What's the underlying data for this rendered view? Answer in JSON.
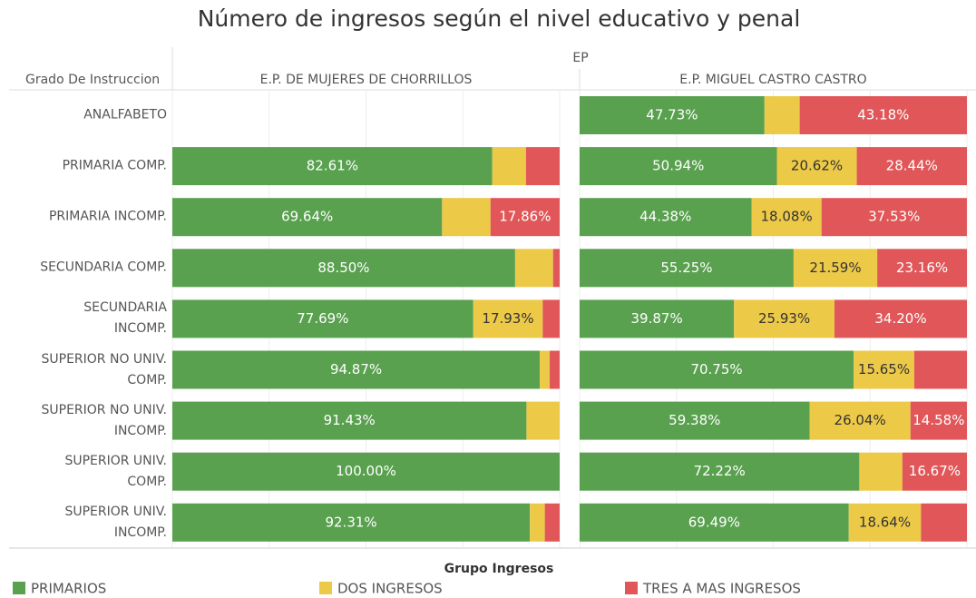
{
  "chart_data": {
    "type": "bar",
    "orientation": "horizontal",
    "stacked": true,
    "title": "Número de ingresos según el nivel educativo y penal",
    "facet_label": "EP",
    "row_header": "Grado De Instruccion",
    "legend_title": "Grupo Ingresos",
    "categories": [
      "ANALFABETO",
      "PRIMARIA COMP.",
      "PRIMARIA INCOMP.",
      "SECUNDARIA COMP.",
      "SECUNDARIA\nINCOMP.",
      "SUPERIOR NO UNIV.\nCOMP.",
      "SUPERIOR NO UNIV.\nINCOMP.",
      "SUPERIOR UNIV.\nCOMP.",
      "SUPERIOR UNIV.\nINCOMP."
    ],
    "xlim": [
      0,
      100
    ],
    "xticks": [
      0,
      25,
      50,
      75,
      100
    ],
    "grid": true,
    "legend_names": [
      "PRIMARIOS",
      "DOS INGRESOS",
      "TRES A MAS INGRESOS"
    ],
    "colors": [
      "#59a14f",
      "#edc948",
      "#e15759"
    ],
    "facets": [
      {
        "name": "E.P. DE MUJERES DE CHORRILLOS",
        "series": [
          {
            "values": [
              null,
              82.61,
              69.64,
              88.5,
              77.69,
              94.87,
              91.43,
              100.0,
              92.31
            ],
            "value_labels": [
              null,
              "82.61%",
              "69.64%",
              "88.50%",
              "77.69%",
              "94.87%",
              "91.43%",
              "100.00%",
              "92.31%"
            ]
          },
          {
            "values": [
              null,
              8.7,
              12.5,
              9.8,
              17.93,
              2.56,
              8.57,
              0,
              3.85
            ],
            "value_labels": [
              null,
              null,
              null,
              null,
              "17.93%",
              null,
              null,
              null,
              null
            ]
          },
          {
            "values": [
              null,
              8.69,
              17.86,
              1.7,
              4.38,
              2.57,
              0,
              0,
              3.84
            ],
            "value_labels": [
              null,
              null,
              "17.86%",
              null,
              null,
              null,
              null,
              null,
              null
            ]
          }
        ]
      },
      {
        "name": "E.P. MIGUEL CASTRO CASTRO",
        "series": [
          {
            "values": [
              47.73,
              50.94,
              44.38,
              55.25,
              39.87,
              70.75,
              59.38,
              72.22,
              69.49
            ],
            "value_labels": [
              "47.73%",
              "50.94%",
              "44.38%",
              "55.25%",
              "39.87%",
              "70.75%",
              "59.38%",
              "72.22%",
              "69.49%"
            ]
          },
          {
            "values": [
              9.09,
              20.62,
              18.08,
              21.59,
              25.93,
              15.65,
              26.04,
              11.11,
              18.64
            ],
            "value_labels": [
              null,
              "20.62%",
              "18.08%",
              "21.59%",
              "25.93%",
              "15.65%",
              "26.04%",
              null,
              "18.64%"
            ]
          },
          {
            "values": [
              43.18,
              28.44,
              37.53,
              23.16,
              34.2,
              13.6,
              14.58,
              16.67,
              11.87
            ],
            "value_labels": [
              "43.18%",
              "28.44%",
              "37.53%",
              "23.16%",
              "34.20%",
              null,
              "14.58%",
              "16.67%",
              null
            ]
          }
        ]
      }
    ]
  }
}
